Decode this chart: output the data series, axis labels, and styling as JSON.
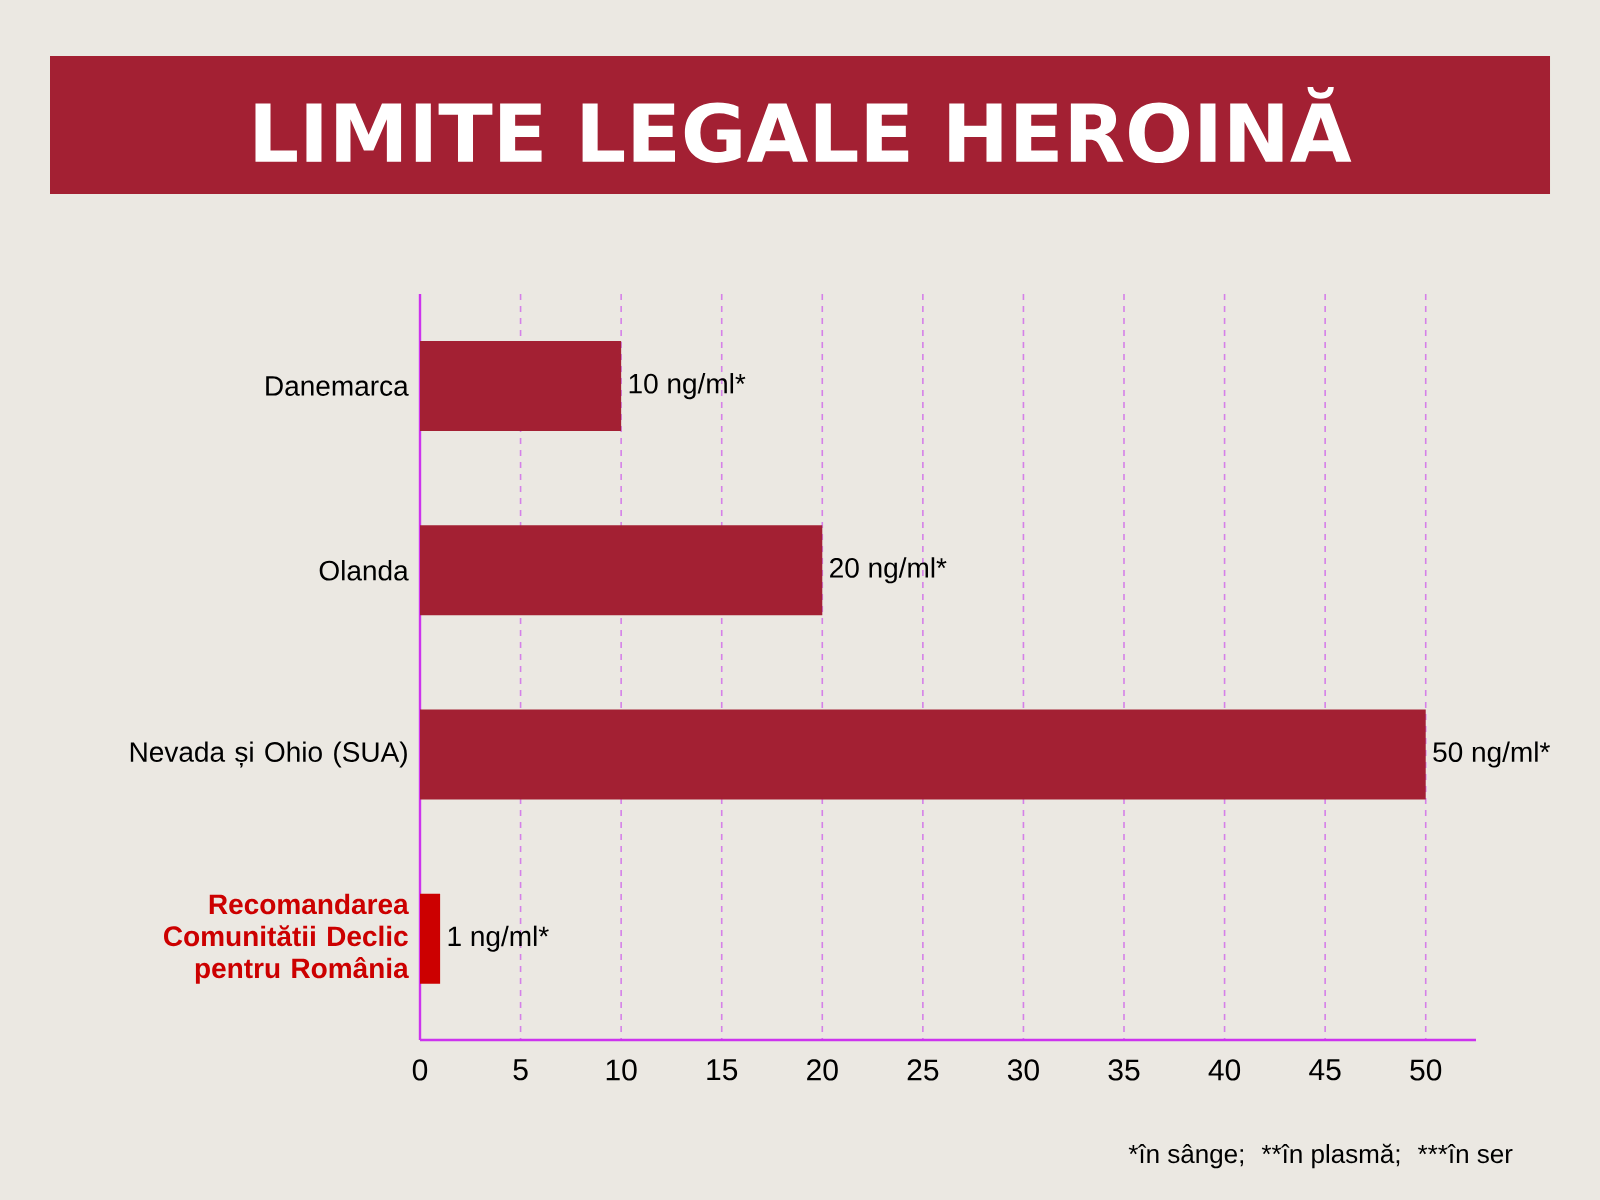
{
  "chart_data": {
    "type": "bar",
    "orientation": "horizontal",
    "title": "LIMITE LEGALE HEROINĂ",
    "categories": [
      "Danemarca",
      "Olanda",
      "Nevada și Ohio (SUA)",
      "Recomandarea Comunitătii Declic pentru România"
    ],
    "values": [
      10,
      20,
      50,
      1
    ],
    "colors": [
      "#a32033",
      "#a32033",
      "#a32033",
      "#cc0000"
    ],
    "value_labels": [
      "10 ng/ml*",
      "20 ng/ml*",
      "50 ng/ml*",
      "1 ng/ml*"
    ],
    "xlim": [
      0,
      52.5
    ],
    "xticks": [
      0,
      5,
      10,
      15,
      20,
      25,
      30,
      35,
      40,
      45,
      50
    ],
    "grid": "x",
    "annotations": [
      "*în sânge;",
      "**în plasmă;",
      "***în ser"
    ]
  }
}
